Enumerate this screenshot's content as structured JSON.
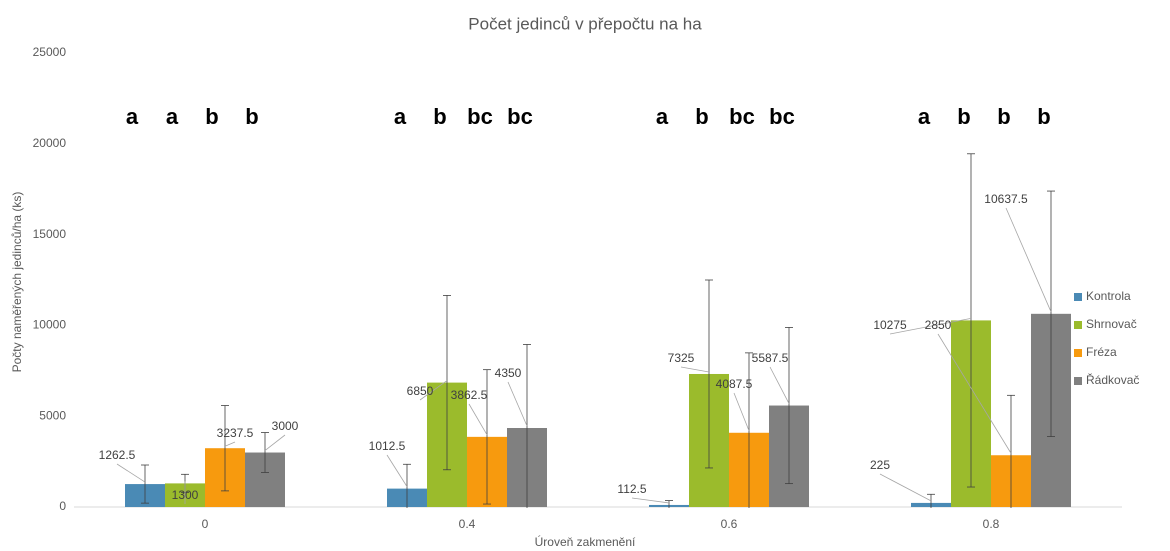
{
  "chart_data": {
    "type": "bar",
    "title": "Počet jedinců v přepočtu na ha",
    "x_label": "Úroveň zakmenění",
    "y_label": "Počty naměřených jedinců/ha (ks)",
    "categories": [
      "0",
      "0.4",
      "0.6",
      "0.8"
    ],
    "series": [
      {
        "name": "Kontrola",
        "color": "#4a8ab5",
        "values": [
          1262.5,
          1012.5,
          112.5,
          225
        ],
        "errors": [
          1050,
          1340,
          240,
          475
        ]
      },
      {
        "name": "Shrnovač",
        "color": "#9bbb2c",
        "values": [
          1300,
          6850,
          7325,
          10275
        ],
        "errors": [
          500,
          4800,
          5175,
          9175
        ]
      },
      {
        "name": "Fréza",
        "color": "#f79a0e",
        "values": [
          3237.5,
          3862.5,
          4087.5,
          2850
        ],
        "errors": [
          2350,
          3700,
          4400,
          3300
        ]
      },
      {
        "name": "Řádkovač",
        "color": "#808080",
        "values": [
          3000,
          4350,
          5587.5,
          10637.5
        ],
        "errors": [
          1100,
          4600,
          4300,
          6760
        ]
      }
    ],
    "letters": [
      [
        "a",
        "a",
        "b",
        "b"
      ],
      [
        "a",
        "b",
        "bc",
        "bc"
      ],
      [
        "a",
        "b",
        "bc",
        "bc"
      ],
      [
        "a",
        "b",
        "b",
        "b"
      ]
    ],
    "ylim": [
      0,
      25000
    ],
    "yticks": [
      0,
      5000,
      10000,
      15000,
      20000,
      25000
    ],
    "legend": "right"
  }
}
